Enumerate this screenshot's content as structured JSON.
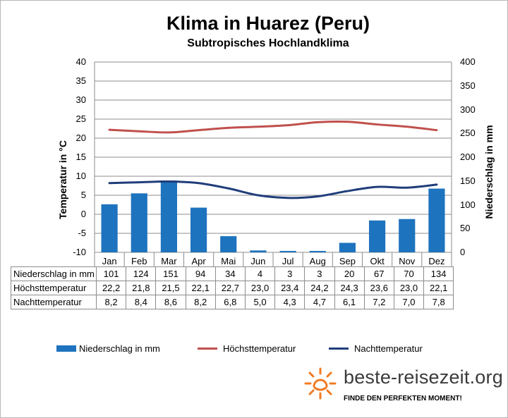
{
  "chart_data": {
    "type": "bar+line",
    "title": "Klima in Huarez (Peru)",
    "subtitle": "Subtropisches Hochlandklima",
    "ylabel_left": "Temperatur in °C",
    "ylabel_right": "Niederschlag in mm",
    "ylim_left": [
      -10,
      40
    ],
    "ylim_right": [
      0,
      400
    ],
    "yticks_left": [
      "40",
      "35",
      "30",
      "25",
      "20",
      "15",
      "10",
      "5",
      "0",
      "-5",
      "-10"
    ],
    "yticks_right": [
      "400",
      "350",
      "300",
      "250",
      "200",
      "150",
      "100",
      "50",
      "0"
    ],
    "categories": [
      "Jan",
      "Feb",
      "Mar",
      "Apr",
      "Mai",
      "Jun",
      "Jul",
      "Aug",
      "Sep",
      "Okt",
      "Nov",
      "Dez"
    ],
    "grid": true,
    "legend_position": "bottom",
    "series": [
      {
        "name": "Niederschlag in mm",
        "kind": "bar",
        "axis": "right",
        "color": "#1e73be",
        "values": [
          101,
          124,
          151,
          94,
          34,
          4,
          3,
          3,
          20,
          67,
          70,
          134
        ],
        "labels": [
          "101",
          "124",
          "151",
          "94",
          "34",
          "4",
          "3",
          "3",
          "20",
          "67",
          "70",
          "134"
        ]
      },
      {
        "name": "Höchsttemperatur",
        "kind": "line",
        "axis": "left",
        "color": "#c0504d",
        "values": [
          22.2,
          21.8,
          21.5,
          22.1,
          22.7,
          23.0,
          23.4,
          24.2,
          24.3,
          23.6,
          23.0,
          22.1
        ],
        "labels": [
          "22,2",
          "21,8",
          "21,5",
          "22,1",
          "22,7",
          "23,0",
          "23,4",
          "24,2",
          "24,3",
          "23,6",
          "23,0",
          "22,1"
        ]
      },
      {
        "name": "Nachttemperatur",
        "kind": "line",
        "axis": "left",
        "color": "#1f3d7a",
        "values": [
          8.2,
          8.4,
          8.6,
          8.2,
          6.8,
          5.0,
          4.3,
          4.7,
          6.1,
          7.2,
          7.0,
          7.8
        ],
        "labels": [
          "8,2",
          "8,4",
          "8,6",
          "8,2",
          "6,8",
          "5,0",
          "4,3",
          "4,7",
          "6,1",
          "7,2",
          "7,0",
          "7,8"
        ]
      }
    ]
  },
  "branding": {
    "site": "beste-reisezeit.org",
    "slogan": "FINDE DEN PERFEKTEN MOMENT!",
    "logo_icon": "sun-icon",
    "logo_color": "#f07b22"
  }
}
